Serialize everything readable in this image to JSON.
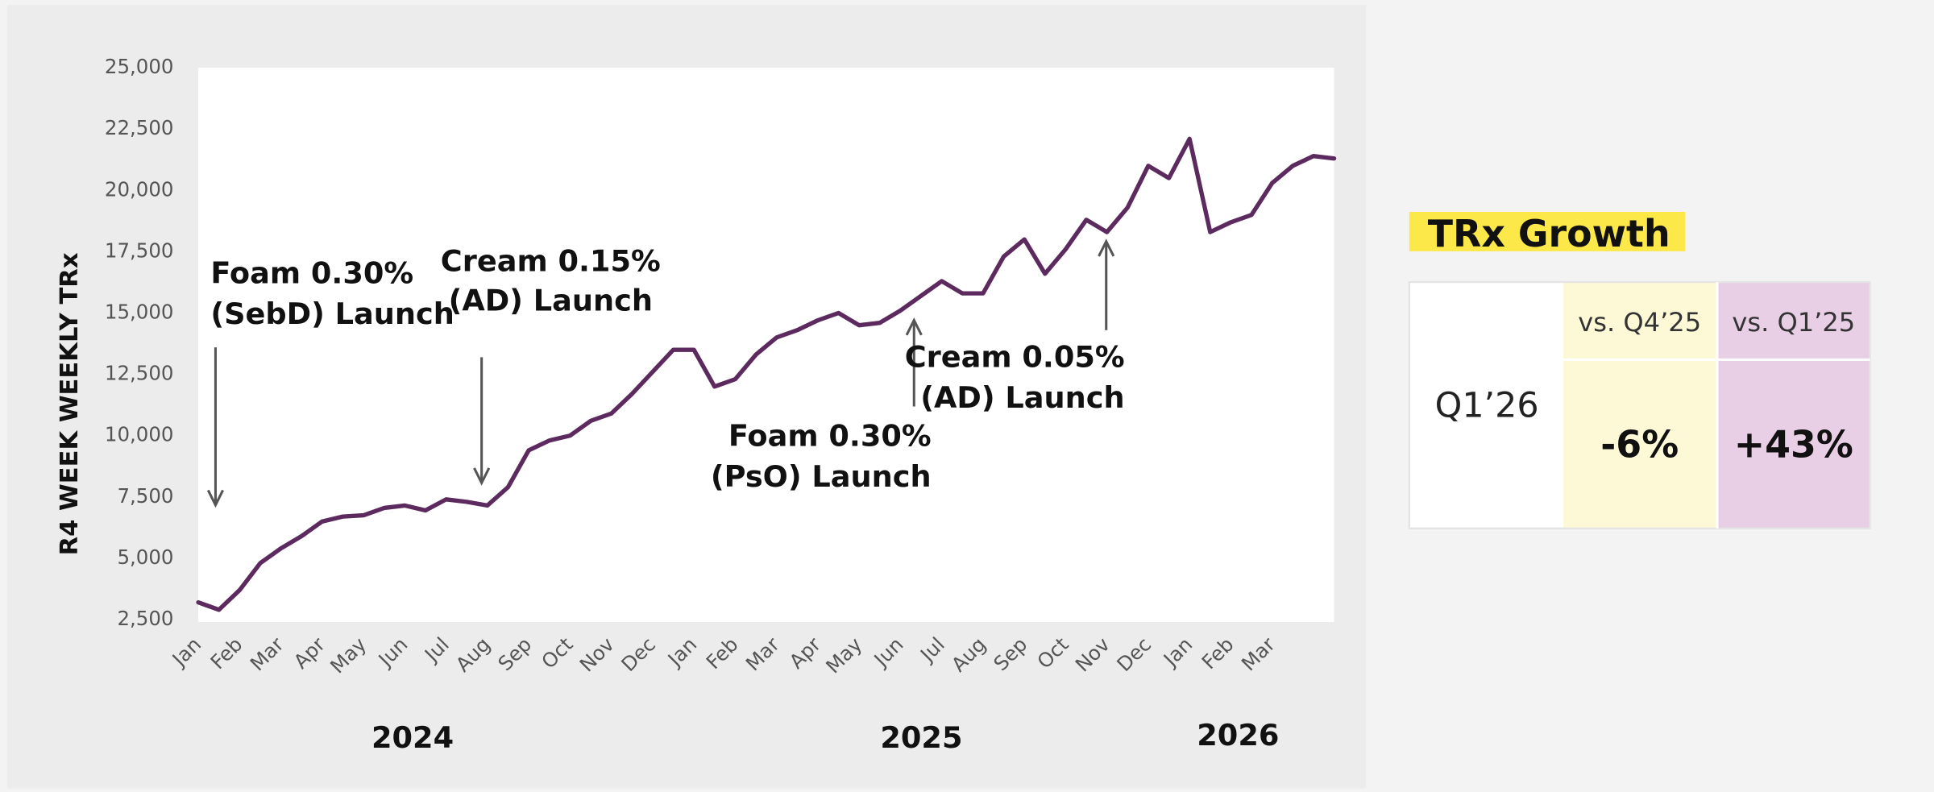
{
  "chart_data": {
    "type": "line",
    "y_label": "R4 WEEK WEEKLY TRx",
    "categories": [
      "Jan",
      null,
      "Feb",
      null,
      "Mar",
      null,
      "Apr",
      null,
      "May",
      null,
      "Jun",
      null,
      "Jul",
      null,
      "Aug",
      null,
      "Sep",
      null,
      "Oct",
      null,
      "Nov",
      null,
      "Dec",
      null,
      "Jan",
      null,
      "Feb",
      null,
      "Mar",
      null,
      "Apr",
      null,
      "May",
      null,
      "Jun",
      null,
      "Jul",
      null,
      "Aug",
      null,
      "Sep",
      null,
      "Oct",
      null,
      "Nov",
      null,
      "Dec",
      null,
      "Jan",
      null,
      "Feb",
      null,
      "Mar",
      null,
      null,
      null
    ],
    "values": [
      3200,
      2900,
      3700,
      4800,
      5400,
      5900,
      6500,
      6700,
      6750,
      7050,
      7150,
      6950,
      7400,
      7300,
      7150,
      7900,
      9400,
      9800,
      10000,
      10600,
      10900,
      11700,
      12600,
      13500,
      13500,
      12000,
      12300,
      13300,
      14000,
      14300,
      14700,
      15000,
      14500,
      14600,
      15100,
      15700,
      16300,
      15800,
      15800,
      17300,
      18000,
      16600,
      17600,
      18800,
      18300,
      19300,
      21000,
      20500,
      22100,
      18300,
      18700,
      19000,
      20300,
      21000,
      21400,
      21300
    ],
    "color": "#5c2a5e",
    "years": [
      "2024",
      "2025",
      "2026"
    ],
    "ylim": [
      2500,
      25000
    ],
    "yticks": [
      {
        "value": 2500,
        "label": "2,500"
      },
      {
        "value": 5000,
        "label": "5,000"
      },
      {
        "value": 7500,
        "label": "7,500"
      },
      {
        "value": 10000,
        "label": "10,000"
      },
      {
        "value": 12500,
        "label": "12,500"
      },
      {
        "value": 15000,
        "label": "15,000"
      },
      {
        "value": 17500,
        "label": "17,500"
      },
      {
        "value": 20000,
        "label": "20,000"
      },
      {
        "value": 22500,
        "label": "22,500"
      },
      {
        "value": 25000,
        "label": "25,000"
      }
    ],
    "grid": false,
    "annotations": [
      {
        "lines": [
          "Foam 0.30%",
          "(SebD) Launch"
        ]
      },
      {
        "lines": [
          "Cream 0.15%",
          "(AD) Launch"
        ]
      },
      {
        "lines": [
          "Foam 0.30%",
          "(PsO) Launch"
        ]
      },
      {
        "lines": [
          "Cream 0.05%",
          "(AD) Launch"
        ]
      }
    ]
  },
  "table": {
    "title": "TRx Growth",
    "headers": [
      "vs. Q4’25",
      "vs. Q1’25"
    ],
    "row_label": "Q1’26",
    "cells": [
      "-6%",
      "+43%"
    ]
  }
}
